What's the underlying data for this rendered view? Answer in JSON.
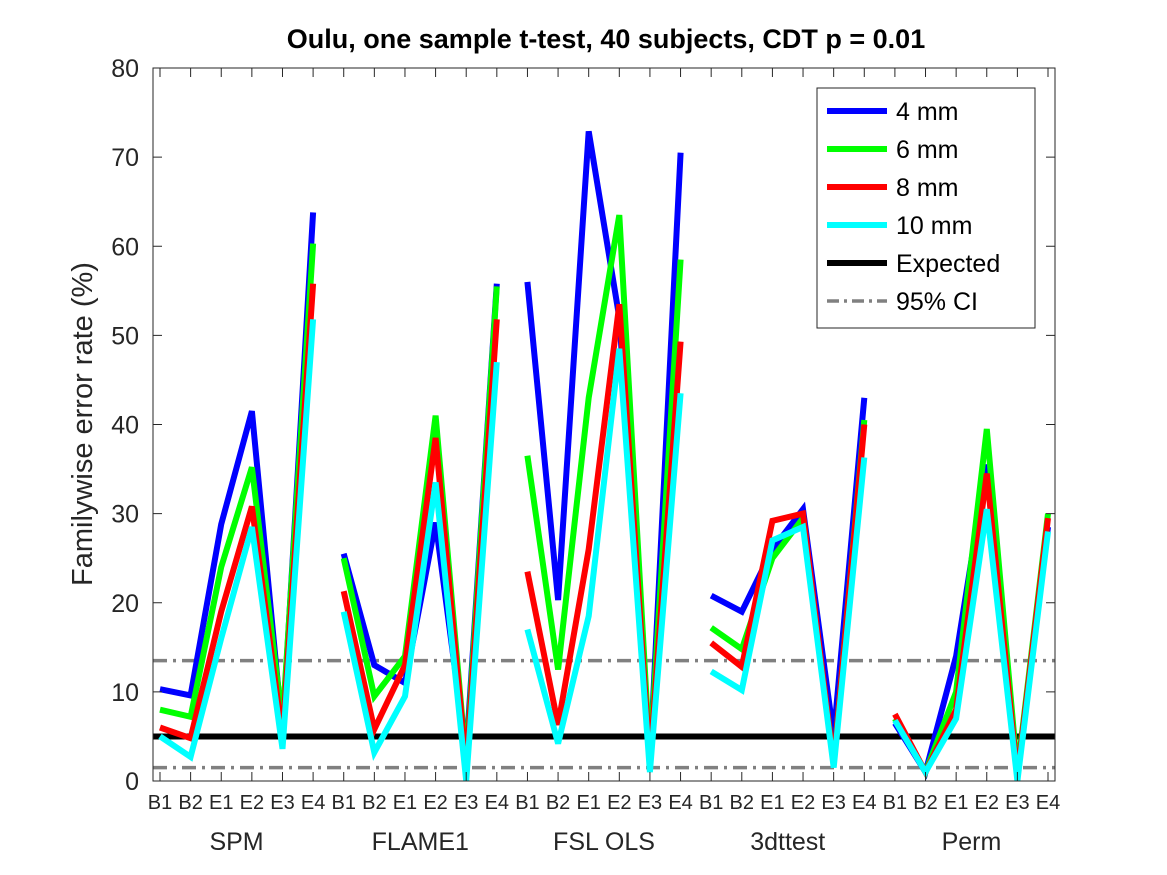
{
  "chart_data": {
    "type": "line",
    "title": "Oulu, one sample t-test, 40 subjects, CDT p = 0.01",
    "xlabel": "",
    "ylabel": "Familywise error rate (%)",
    "ylim": [
      0,
      80
    ],
    "yticks": [
      "0",
      "10",
      "20",
      "30",
      "40",
      "50",
      "60",
      "70",
      "80"
    ],
    "categories": [
      "B1",
      "B2",
      "E1",
      "E2",
      "E3",
      "E4",
      "B1",
      "B2",
      "E1",
      "E2",
      "E3",
      "E4",
      "B1",
      "B2",
      "E1",
      "E2",
      "E3",
      "E4",
      "B1",
      "B2",
      "E1",
      "E2",
      "E3",
      "E4",
      "B1",
      "B2",
      "E1",
      "E2",
      "E3",
      "E4"
    ],
    "groups": [
      "SPM",
      "FLAME1",
      "FSL OLS",
      "3dttest",
      "Perm"
    ],
    "grid": false,
    "legend_position": "top-right",
    "series": [
      {
        "name": "4 mm",
        "color": "#0000ff",
        "values": [
          10.3,
          9.6,
          28.8,
          41.5,
          5.5,
          63.8,
          25.5,
          13,
          11,
          29,
          3,
          55.8,
          56,
          20.3,
          72.9,
          52,
          2,
          70.5,
          20.8,
          19,
          26,
          30.5,
          5,
          43,
          6.5,
          1,
          14,
          35.5,
          1,
          28.5
        ]
      },
      {
        "name": "6 mm",
        "color": "#00ff00",
        "values": [
          8,
          7.2,
          24,
          35.2,
          6.5,
          60.3,
          25,
          9.5,
          14,
          41,
          2,
          55.5,
          36.5,
          12.5,
          43,
          63.5,
          2.5,
          58.5,
          17.2,
          14.8,
          25,
          29.5,
          2,
          40.5,
          7,
          1,
          10,
          39.5,
          1,
          30
        ]
      },
      {
        "name": "8 mm",
        "color": "#ff0000",
        "values": [
          6,
          4.8,
          19,
          30.8,
          5,
          55.8,
          21.3,
          5.8,
          13,
          38.5,
          1.5,
          51.8,
          23.5,
          6.3,
          26,
          53.5,
          2,
          49.3,
          15.5,
          12.8,
          29.2,
          30,
          2,
          40,
          7.5,
          1,
          8,
          34.5,
          0.5,
          29.5
        ]
      },
      {
        "name": "10 mm",
        "color": "#00ffff",
        "values": [
          5,
          2.7,
          16,
          28.5,
          3.6,
          51.8,
          19,
          3.2,
          9.5,
          33.5,
          0,
          47,
          17,
          4.2,
          18.5,
          48.5,
          1,
          43.5,
          12.3,
          10.2,
          27,
          28.5,
          1.5,
          36.3,
          6.8,
          1,
          7,
          30.5,
          0,
          28
        ]
      }
    ],
    "reference_lines": [
      {
        "name": "Expected",
        "value": 5,
        "color": "#000000",
        "style": "solid"
      },
      {
        "name": "95% CI",
        "values": [
          1.5,
          13.5
        ],
        "color": "#808080",
        "style": "dash-dot"
      }
    ]
  }
}
